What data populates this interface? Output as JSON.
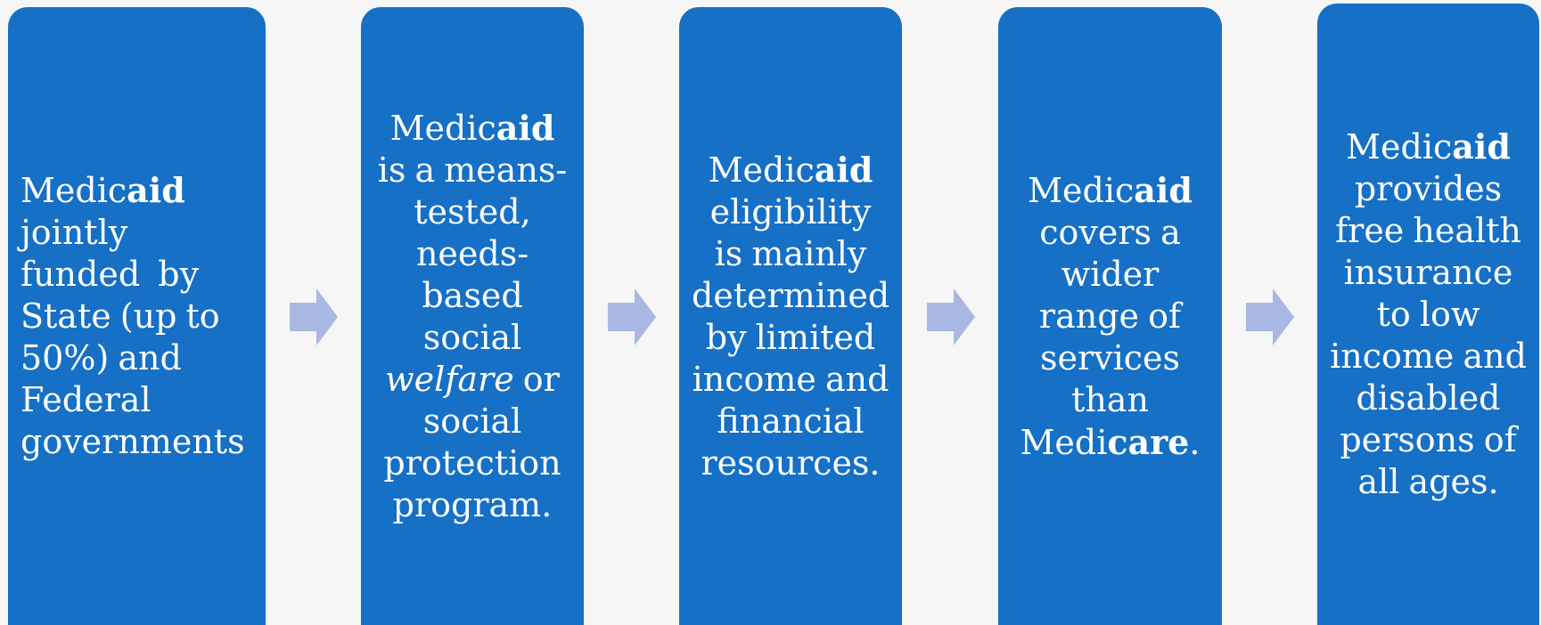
{
  "nodes": [
    {
      "align": "left",
      "parts": [
        {
          "text": "Medic"
        },
        {
          "text": "aid",
          "style": "bold"
        },
        {
          "text": " jointly funded  by State (up to 50%) and Federal governments"
        }
      ]
    },
    {
      "align": "center",
      "parts": [
        {
          "text": "Medic"
        },
        {
          "text": "aid",
          "style": "bold"
        },
        {
          "text": " is a means-tested, needs-based social "
        },
        {
          "text": "welfare",
          "style": "italic"
        },
        {
          "text": " or social protection program."
        }
      ]
    },
    {
      "align": "center",
      "parts": [
        {
          "text": "Medic"
        },
        {
          "text": "aid",
          "style": "bold"
        },
        {
          "text": " eligibility is mainly determined by limited income and financial resources."
        }
      ]
    },
    {
      "align": "center",
      "parts": [
        {
          "text": "Medic"
        },
        {
          "text": "aid",
          "style": "bold"
        },
        {
          "text": " covers a wider range of services than Medi"
        },
        {
          "text": "care",
          "style": "bold"
        },
        {
          "text": "."
        }
      ]
    },
    {
      "align": "center",
      "parts": [
        {
          "text": "Medic"
        },
        {
          "text": "aid",
          "style": "bold"
        },
        {
          "text": " provides free health insurance to low income and disabled persons of all ages."
        }
      ]
    }
  ]
}
